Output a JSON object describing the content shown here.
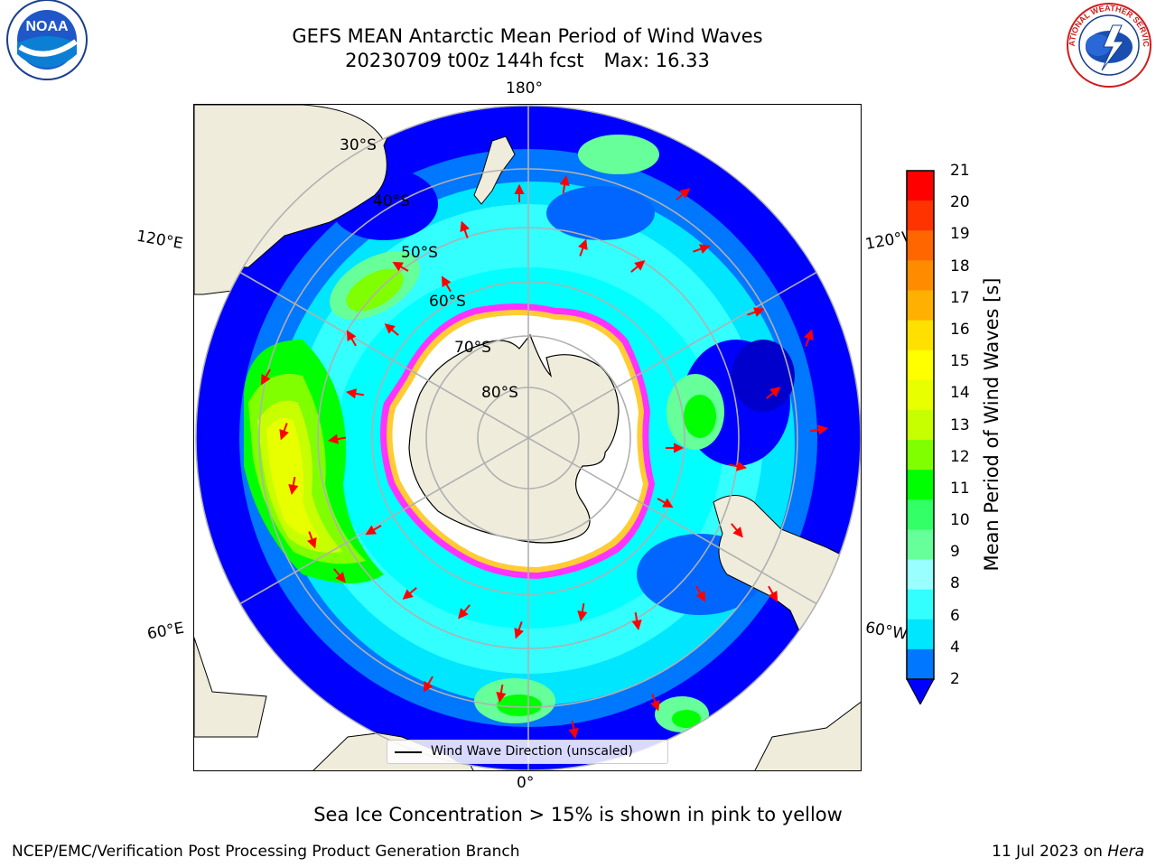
{
  "title": {
    "line1": "GEFS MEAN Antarctic Mean Period of Wind Waves",
    "cycle": "20230709 t00z 144h fcst",
    "max": "Max: 16.33"
  },
  "logos": {
    "left": "noaa-logo",
    "left_text": "NOAA",
    "left_ring_text": "NATIONAL OCEANIC AND ATMOSPHERIC ADMINISTRATION · U.S. DEPARTMENT OF COMMERCE",
    "right": "nws-logo",
    "right_ring_text": "NATIONAL WEATHER SERVICE"
  },
  "map": {
    "projection": "south-polar-stereographic",
    "lon_labels": {
      "top": "180°",
      "bottom": "0°",
      "upper_left": "120°E",
      "upper_right": "120°W",
      "lower_left": "60°E",
      "lower_right": "60°W"
    },
    "lat_labels": [
      "30°S",
      "40°S",
      "50°S",
      "60°S",
      "70°S",
      "80°S"
    ],
    "colors": {
      "land": "#efecdc",
      "ocean_base": "#00ffff",
      "arrow": "#ff0000",
      "ice_edge": "#ff33ff",
      "grid": "#b0b0b0"
    },
    "legend": "Wind Wave Direction (unscaled)"
  },
  "colorbar": {
    "label": "Mean Period of Wind Waves [s]",
    "ticks": [
      "21",
      "20",
      "19",
      "18",
      "17",
      "16",
      "15",
      "14",
      "13",
      "12",
      "11",
      "10",
      "9",
      "8",
      "6",
      "4",
      "2"
    ],
    "colors": [
      "#ff0000",
      "#ff3300",
      "#ff6600",
      "#ff8c00",
      "#ffb000",
      "#ffe000",
      "#ffff00",
      "#e8ff00",
      "#c8ff00",
      "#80ff00",
      "#00ff00",
      "#33ff66",
      "#66ff99",
      "#99ffff",
      "#33ffff",
      "#00e6ff",
      "#0077ff"
    ],
    "extend_color": "#0000ff"
  },
  "footer": {
    "ice_note": "Sea Ice Concentration > 15% is shown in pink to yellow",
    "left": "NCEP/EMC/Verification Post Processing Product Generation Branch",
    "date": "11 Jul 2023 on",
    "machine": "Hera"
  }
}
